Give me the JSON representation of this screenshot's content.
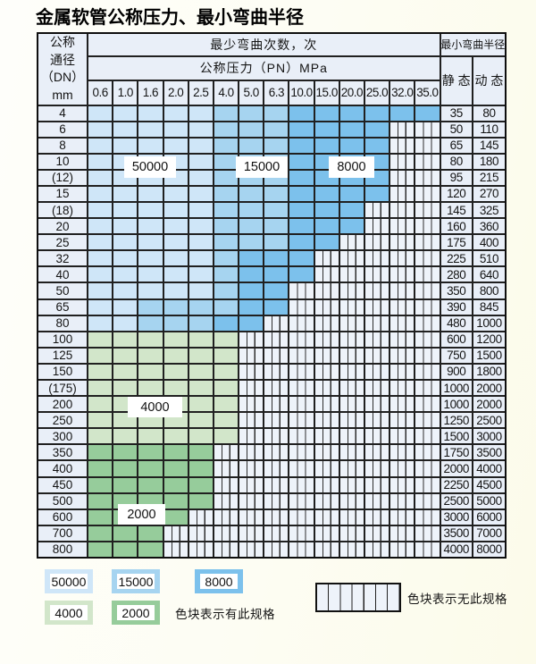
{
  "title": "金属软管公称压力、最小弯曲半径",
  "palette": {
    "50000": "#cfe6f8",
    "15000": "#a6d4f0",
    "8000": "#7cc1ec",
    "4000": "#d2e6ca",
    "2000": "#96cc9b",
    "no_spec_bg": "#eef3fa",
    "header_bg": "#e9eff8",
    "grid_line": "#202020",
    "page_bg": "#fdfdf3"
  },
  "table": {
    "dn_header_lines": [
      "公称",
      "通径",
      "（DN）",
      "mm"
    ],
    "bend_times_header": "最少弯曲次数，次",
    "pressure_header": "公称压力（PN）MPa",
    "radius_header": "最小弯曲半径",
    "static_header": "静 态",
    "dynamic_header": "动 态",
    "pressure_columns": [
      "0.6",
      "1.0",
      "1.6",
      "2.0",
      "2.5",
      "4.0",
      "5.0",
      "6.3",
      "10.0",
      "15.0",
      "20.0",
      "25.0",
      "32.0",
      "35.0"
    ],
    "rows": [
      {
        "dn": "4",
        "cells": [
          "50000",
          "50000",
          "50000",
          "50000",
          "50000",
          "15000",
          "15000",
          "15000",
          "8000",
          "8000",
          "8000",
          "8000",
          "8000",
          "8000"
        ],
        "static": "35",
        "dynamic": "80"
      },
      {
        "dn": "6",
        "cells": [
          "50000",
          "50000",
          "50000",
          "50000",
          "50000",
          "15000",
          "15000",
          "15000",
          "8000",
          "8000",
          "8000",
          "8000",
          "",
          ""
        ],
        "static": "50",
        "dynamic": "110"
      },
      {
        "dn": "8",
        "cells": [
          "50000",
          "50000",
          "50000",
          "50000",
          "50000",
          "15000",
          "15000",
          "15000",
          "8000",
          "8000",
          "8000",
          "8000",
          "",
          ""
        ],
        "static": "65",
        "dynamic": "145"
      },
      {
        "dn": "10",
        "cells": [
          "50000",
          "50000",
          "50000",
          "50000",
          "50000",
          "15000",
          "15000",
          "15000",
          "8000",
          "8000",
          "8000",
          "8000",
          "",
          ""
        ],
        "static": "80",
        "dynamic": "180"
      },
      {
        "dn": "(12)",
        "cells": [
          "50000",
          "50000",
          "50000",
          "50000",
          "50000",
          "15000",
          "15000",
          "15000",
          "8000",
          "8000",
          "8000",
          "8000",
          "",
          ""
        ],
        "static": "95",
        "dynamic": "215"
      },
      {
        "dn": "15",
        "cells": [
          "50000",
          "50000",
          "50000",
          "50000",
          "50000",
          "15000",
          "15000",
          "15000",
          "8000",
          "8000",
          "8000",
          "8000",
          "",
          ""
        ],
        "static": "120",
        "dynamic": "270"
      },
      {
        "dn": "(18)",
        "cells": [
          "50000",
          "50000",
          "50000",
          "50000",
          "50000",
          "15000",
          "15000",
          "15000",
          "8000",
          "8000",
          "8000",
          "",
          "",
          ""
        ],
        "static": "145",
        "dynamic": "325"
      },
      {
        "dn": "20",
        "cells": [
          "50000",
          "50000",
          "50000",
          "50000",
          "50000",
          "15000",
          "15000",
          "15000",
          "8000",
          "8000",
          "8000",
          "",
          "",
          ""
        ],
        "static": "160",
        "dynamic": "360"
      },
      {
        "dn": "25",
        "cells": [
          "50000",
          "50000",
          "50000",
          "50000",
          "50000",
          "15000",
          "15000",
          "15000",
          "8000",
          "8000",
          "",
          "",
          "",
          ""
        ],
        "static": "175",
        "dynamic": "400"
      },
      {
        "dn": "32",
        "cells": [
          "50000",
          "50000",
          "50000",
          "50000",
          "50000",
          "15000",
          "8000",
          "8000",
          "8000",
          "",
          "",
          "",
          "",
          ""
        ],
        "static": "225",
        "dynamic": "510"
      },
      {
        "dn": "40",
        "cells": [
          "50000",
          "50000",
          "50000",
          "50000",
          "50000",
          "15000",
          "8000",
          "8000",
          "8000",
          "",
          "",
          "",
          "",
          ""
        ],
        "static": "280",
        "dynamic": "640"
      },
      {
        "dn": "50",
        "cells": [
          "50000",
          "50000",
          "50000",
          "50000",
          "50000",
          "15000",
          "8000",
          "8000",
          "",
          "",
          "",
          "",
          "",
          ""
        ],
        "static": "350",
        "dynamic": "800"
      },
      {
        "dn": "65",
        "cells": [
          "50000",
          "50000",
          "15000",
          "15000",
          "15000",
          "15000",
          "8000",
          "8000",
          "",
          "",
          "",
          "",
          "",
          ""
        ],
        "static": "390",
        "dynamic": "845"
      },
      {
        "dn": "80",
        "cells": [
          "50000",
          "50000",
          "15000",
          "15000",
          "15000",
          "8000",
          "8000",
          "",
          "",
          "",
          "",
          "",
          "",
          ""
        ],
        "static": "480",
        "dynamic": "1000"
      },
      {
        "dn": "100",
        "cells": [
          "4000",
          "4000",
          "4000",
          "4000",
          "4000",
          "4000",
          "",
          "",
          "",
          "",
          "",
          "",
          "",
          ""
        ],
        "static": "600",
        "dynamic": "1200"
      },
      {
        "dn": "125",
        "cells": [
          "4000",
          "4000",
          "4000",
          "4000",
          "4000",
          "4000",
          "",
          "",
          "",
          "",
          "",
          "",
          "",
          ""
        ],
        "static": "750",
        "dynamic": "1500"
      },
      {
        "dn": "150",
        "cells": [
          "4000",
          "4000",
          "4000",
          "4000",
          "4000",
          "4000",
          "",
          "",
          "",
          "",
          "",
          "",
          "",
          ""
        ],
        "static": "900",
        "dynamic": "1800"
      },
      {
        "dn": "(175)",
        "cells": [
          "4000",
          "4000",
          "4000",
          "4000",
          "4000",
          "4000",
          "",
          "",
          "",
          "",
          "",
          "",
          "",
          ""
        ],
        "static": "1000",
        "dynamic": "2000"
      },
      {
        "dn": "200",
        "cells": [
          "4000",
          "4000",
          "4000",
          "4000",
          "4000",
          "4000",
          "",
          "",
          "",
          "",
          "",
          "",
          "",
          ""
        ],
        "static": "1000",
        "dynamic": "2000"
      },
      {
        "dn": "250",
        "cells": [
          "4000",
          "4000",
          "4000",
          "4000",
          "4000",
          "4000",
          "",
          "",
          "",
          "",
          "",
          "",
          "",
          ""
        ],
        "static": "1250",
        "dynamic": "2500"
      },
      {
        "dn": "300",
        "cells": [
          "4000",
          "4000",
          "4000",
          "4000",
          "4000",
          "4000",
          "",
          "",
          "",
          "",
          "",
          "",
          "",
          ""
        ],
        "static": "1500",
        "dynamic": "3000"
      },
      {
        "dn": "350",
        "cells": [
          "2000",
          "2000",
          "2000",
          "2000",
          "2000",
          "",
          "",
          "",
          "",
          "",
          "",
          "",
          "",
          ""
        ],
        "static": "1750",
        "dynamic": "3500"
      },
      {
        "dn": "400",
        "cells": [
          "2000",
          "2000",
          "2000",
          "2000",
          "2000",
          "",
          "",
          "",
          "",
          "",
          "",
          "",
          "",
          ""
        ],
        "static": "2000",
        "dynamic": "4000"
      },
      {
        "dn": "450",
        "cells": [
          "2000",
          "2000",
          "2000",
          "2000",
          "2000",
          "",
          "",
          "",
          "",
          "",
          "",
          "",
          "",
          ""
        ],
        "static": "2250",
        "dynamic": "4500"
      },
      {
        "dn": "500",
        "cells": [
          "2000",
          "2000",
          "2000",
          "2000",
          "2000",
          "",
          "",
          "",
          "",
          "",
          "",
          "",
          "",
          ""
        ],
        "static": "2500",
        "dynamic": "5000"
      },
      {
        "dn": "600",
        "cells": [
          "2000",
          "2000",
          "2000",
          "2000",
          "",
          "",
          "",
          "",
          "",
          "",
          "",
          "",
          "",
          ""
        ],
        "static": "3000",
        "dynamic": "6000"
      },
      {
        "dn": "700",
        "cells": [
          "2000",
          "2000",
          "2000",
          "",
          "",
          "",
          "",
          "",
          "",
          "",
          "",
          "",
          "",
          ""
        ],
        "static": "3500",
        "dynamic": "7000"
      },
      {
        "dn": "800",
        "cells": [
          "2000",
          "2000",
          "2000",
          "",
          "",
          "",
          "",
          "",
          "",
          "",
          "",
          "",
          "",
          ""
        ],
        "static": "4000",
        "dynamic": "8000"
      }
    ]
  },
  "overlays": {
    "l50000": "50000",
    "l15000": "15000",
    "l8000": "8000",
    "l4000": "4000",
    "l2000": "2000"
  },
  "legend": {
    "items": [
      {
        "label": "50000",
        "color": "50000"
      },
      {
        "label": "15000",
        "color": "15000"
      },
      {
        "label": "8000",
        "color": "8000"
      },
      {
        "label": "4000",
        "color": "4000"
      },
      {
        "label": "2000",
        "color": "2000"
      }
    ],
    "note_has": "色块表示有此规格",
    "note_none": "色块表示无此规格"
  }
}
